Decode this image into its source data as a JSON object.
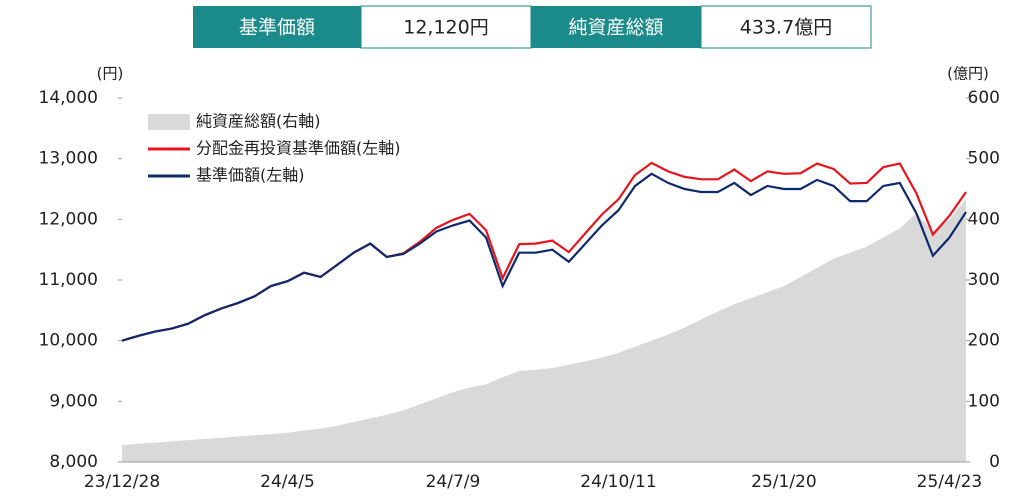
{
  "header": {
    "cells": [
      "基準価額",
      "12,120円",
      "純資産総額",
      "433.7億円"
    ]
  },
  "chart_data": {
    "type": "line",
    "y_unit": "(円)",
    "y2_unit": "(億円)",
    "categories": [
      "23/12/28",
      null,
      null,
      null,
      null,
      null,
      null,
      null,
      null,
      null,
      "24/4/5",
      null,
      null,
      null,
      null,
      null,
      null,
      null,
      null,
      null,
      "24/7/9",
      null,
      null,
      null,
      null,
      null,
      null,
      null,
      null,
      null,
      "24/10/11",
      null,
      null,
      null,
      null,
      null,
      null,
      null,
      null,
      null,
      "25/1/20",
      null,
      null,
      null,
      null,
      null,
      null,
      null,
      null,
      null,
      "25/4/23",
      null
    ],
    "ylim": [
      8000,
      14000
    ],
    "yticks": [
      {
        "value": 8000,
        "label": "8,000"
      },
      {
        "value": 9000,
        "label": "9,000"
      },
      {
        "value": 10000,
        "label": "10,000"
      },
      {
        "value": 11000,
        "label": "11,000"
      },
      {
        "value": 12000,
        "label": "12,000"
      },
      {
        "value": 13000,
        "label": "13,000"
      },
      {
        "value": 14000,
        "label": "14,000"
      }
    ],
    "y2lim": [
      0,
      600
    ],
    "y2ticks": [
      0,
      100,
      200,
      300,
      400,
      500,
      600
    ],
    "series": [
      {
        "name": "純資産総額(右軸)",
        "kind": "area",
        "axis": "y2",
        "color": "#d9d9d9",
        "values": [
          28,
          30,
          32,
          34,
          36,
          38,
          40,
          42,
          44,
          46,
          48,
          52,
          55,
          60,
          66,
          72,
          78,
          85,
          95,
          105,
          115,
          123,
          128,
          140,
          150,
          152,
          155,
          160,
          166,
          172,
          180,
          190,
          200,
          210,
          222,
          235,
          248,
          260,
          270,
          280,
          290,
          305,
          320,
          335,
          345,
          355,
          370,
          385,
          410,
          380,
          400,
          434
        ]
      },
      {
        "name": "分配金再投資基準価額(左軸)",
        "kind": "line",
        "color": "#e8141c",
        "values": [
          10000,
          10080,
          10150,
          10200,
          10280,
          10420,
          10530,
          10620,
          10730,
          10900,
          10980,
          11120,
          11050,
          11250,
          11450,
          11600,
          11380,
          11440,
          11630,
          11860,
          11990,
          12090,
          11820,
          11030,
          11590,
          11600,
          11650,
          11460,
          11770,
          12080,
          12330,
          12730,
          12930,
          12790,
          12700,
          12660,
          12660,
          12820,
          12630,
          12790,
          12750,
          12760,
          12920,
          12830,
          12590,
          12600,
          12860,
          12920,
          12430,
          11750,
          12060,
          12450
        ]
      },
      {
        "name": "基準価額(左軸)",
        "kind": "line",
        "color": "#0e2a6e",
        "values": [
          10000,
          10080,
          10150,
          10200,
          10280,
          10420,
          10530,
          10620,
          10730,
          10900,
          10980,
          11120,
          11050,
          11250,
          11450,
          11600,
          11380,
          11430,
          11600,
          11800,
          11900,
          11980,
          11700,
          10900,
          11450,
          11450,
          11500,
          11300,
          11600,
          11900,
          12150,
          12550,
          12750,
          12600,
          12500,
          12450,
          12450,
          12600,
          12400,
          12550,
          12500,
          12500,
          12650,
          12550,
          12300,
          12300,
          12550,
          12600,
          12100,
          11400,
          11700,
          12120
        ]
      }
    ]
  }
}
